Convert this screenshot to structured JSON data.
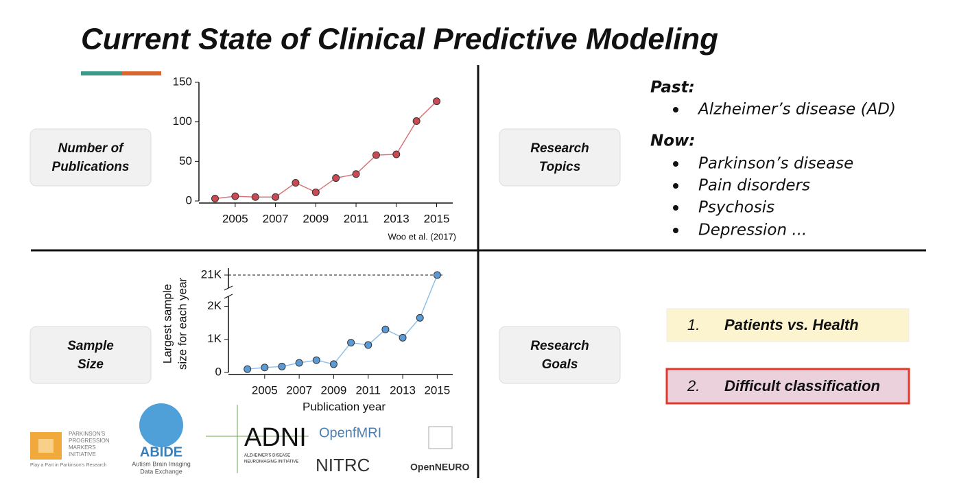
{
  "title": "Current State of Clinical Predictive Modeling",
  "buttons": [
    [
      "Number of",
      "Publications"
    ],
    [
      "Sample",
      "Size"
    ],
    [
      "Research",
      "Topics"
    ],
    [
      "Research",
      "Goals"
    ]
  ],
  "topics": {
    "past_label": "Past:",
    "past": [
      "Alzheimer’s disease (AD)"
    ],
    "now_label": "Now:",
    "now": [
      "Parkinson’s disease",
      "Pain disorders",
      "Psychosis",
      "Depression ..."
    ]
  },
  "goals": [
    {
      "number": "1.",
      "text": "Patients vs. Health"
    },
    {
      "number": "2.",
      "text": "Difficult classification"
    }
  ],
  "logos": {
    "ppmi": [
      "PARKINSON'S",
      "PROGRESSION",
      "MARKERS",
      "INITIATIVE"
    ],
    "ppmi_tagline": "Play a Part in Parkinson's Research",
    "abide": "ABIDE",
    "abide_sub": [
      "Autism Brain Imaging",
      "Data Exchange"
    ],
    "adni": "ADNI",
    "adni_sub": [
      "ALZHEIMER'S DISEASE",
      "NEUROIMAGING INITIATIVE"
    ],
    "openfmri": "OpenfMRI",
    "nitrc": "NITRC",
    "openneuro": "OpenNEURO"
  },
  "chart_data": [
    {
      "type": "line",
      "source": "Woo et al. (2017)",
      "x": [
        2004,
        2005,
        2006,
        2007,
        2008,
        2009,
        2010,
        2011,
        2012,
        2013,
        2014,
        2015
      ],
      "values": [
        3,
        6,
        5,
        5,
        23,
        11,
        29,
        34,
        58,
        59,
        101,
        126
      ],
      "color": "#c94a52",
      "line_color": "#d9737a",
      "xlim": [
        2003.2,
        2015.8
      ],
      "xticks": [
        2005,
        2007,
        2009,
        2011,
        2013,
        2015
      ],
      "ylim": [
        0,
        150
      ],
      "yticks": [
        0,
        50,
        100,
        150
      ]
    },
    {
      "type": "line",
      "xlabel": "Publication year",
      "ylabel": [
        "Largest sample",
        "size for each year"
      ],
      "x": [
        2004,
        2005,
        2006,
        2007,
        2008,
        2009,
        2010,
        2011,
        2012,
        2013,
        2014,
        2015
      ],
      "values": [
        100,
        150,
        180,
        290,
        370,
        250,
        900,
        830,
        1300,
        1050,
        1650,
        21000
      ],
      "color": "#5b9bd5",
      "line_color": "#8ec0ea",
      "xlim": [
        2002.9,
        2015.9
      ],
      "xticks": [
        2005,
        2007,
        2009,
        2011,
        2013,
        2015
      ],
      "ylim": [
        0,
        21000
      ],
      "y_break": [
        2300,
        20900
      ],
      "yticks": [
        0,
        {
          "value": 1000,
          "label": "1K"
        },
        {
          "value": 2000,
          "label": "2K"
        },
        {
          "value": 21000,
          "label": "21K"
        }
      ]
    }
  ]
}
